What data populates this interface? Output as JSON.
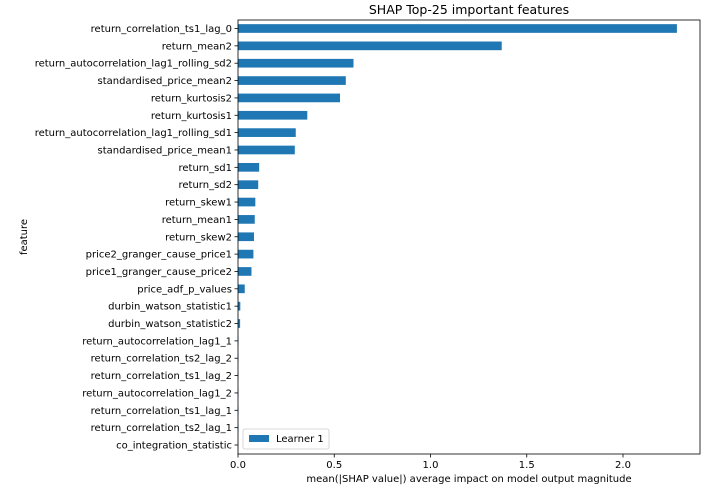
{
  "chart_data": {
    "type": "bar",
    "orientation": "horizontal",
    "title": "SHAP Top-25 important features",
    "xlabel": "mean(|SHAP value|) average impact on model output magnitude",
    "ylabel": "feature",
    "xlim": [
      0,
      2.4
    ],
    "xticks": [
      0.0,
      0.5,
      1.0,
      1.5,
      2.0
    ],
    "xtick_labels": [
      "0.0",
      "0.5",
      "1.0",
      "1.5",
      "2.0"
    ],
    "grid": false,
    "legend_position": "lower-left",
    "bar_color": "#1f77b4",
    "categories": [
      "return_correlation_ts1_lag_0",
      "return_mean2",
      "return_autocorrelation_lag1_rolling_sd2",
      "standardised_price_mean2",
      "return_kurtosis2",
      "return_kurtosis1",
      "return_autocorrelation_lag1_rolling_sd1",
      "standardised_price_mean1",
      "return_sd1",
      "return_sd2",
      "return_skew1",
      "return_mean1",
      "return_skew2",
      "price2_granger_cause_price1",
      "price1_granger_cause_price2",
      "price_adf_p_values",
      "durbin_watson_statistic1",
      "durbin_watson_statistic2",
      "return_autocorrelation_lag1_1",
      "return_correlation_ts2_lag_2",
      "return_correlation_ts1_lag_2",
      "return_autocorrelation_lag1_2",
      "return_correlation_ts1_lag_1",
      "return_correlation_ts2_lag_1",
      "co_integration_statistic"
    ],
    "series": [
      {
        "name": "Learner 1",
        "values": [
          2.28,
          1.37,
          0.6,
          0.56,
          0.53,
          0.36,
          0.3,
          0.295,
          0.11,
          0.105,
          0.09,
          0.087,
          0.083,
          0.08,
          0.07,
          0.035,
          0.012,
          0.011,
          0.002,
          0.002,
          0.002,
          0.002,
          0.002,
          0.002,
          0.001
        ]
      }
    ]
  }
}
